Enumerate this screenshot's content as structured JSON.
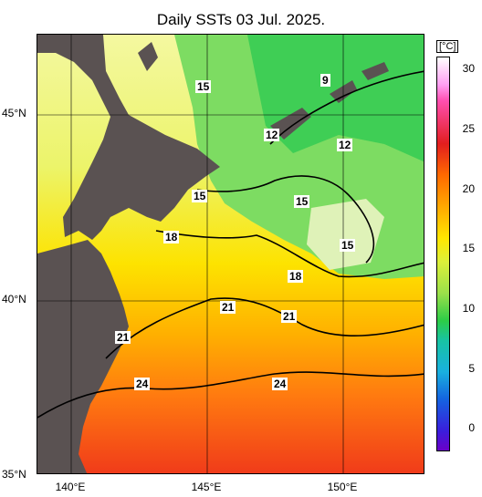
{
  "title": "Daily SSTs 03 Jul. 2025.",
  "lat_labels": [
    "45°N",
    "40°N",
    "35°N"
  ],
  "lon_labels": [
    "140°E",
    "145°E",
    "150°E"
  ],
  "colorbar": {
    "unit": "[°C]",
    "ticks": [
      "30",
      "25",
      "20",
      "15",
      "10",
      "5",
      "0"
    ]
  },
  "contour_labels": [
    "15",
    "9",
    "12",
    "12",
    "15",
    "15",
    "15",
    "18",
    "18",
    "21",
    "21",
    "21",
    "24",
    "24"
  ]
}
